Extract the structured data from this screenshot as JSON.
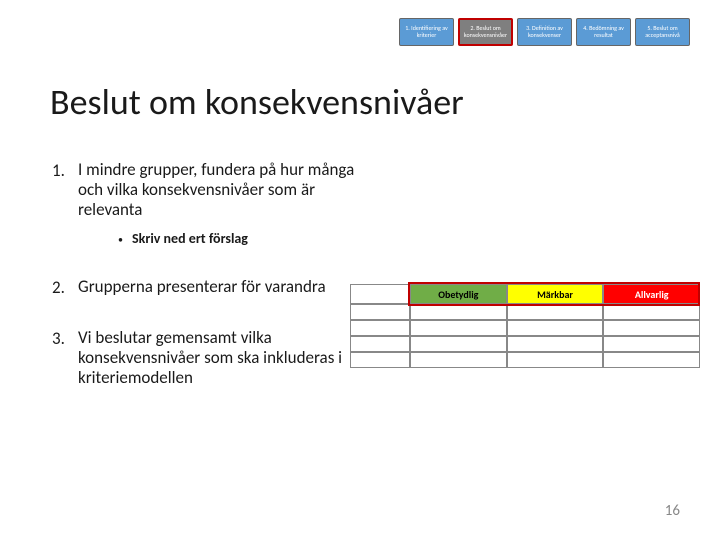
{
  "nav_steps": [
    {
      "label": "1. Identifiering av kriterier",
      "bg": "#5b9bd5"
    },
    {
      "label": "2. Beslut om konsekvensnivåer",
      "bg": "#7f7f7f",
      "highlight": true
    },
    {
      "label": "3. Definition av konsekvenser",
      "bg": "#5b9bd5"
    },
    {
      "label": "4. Bedömning av resultat",
      "bg": "#5b9bd5"
    },
    {
      "label": "5. Beslut om acceptansnivå",
      "bg": "#5b9bd5"
    }
  ],
  "title": "Beslut om konsekvensnivåer",
  "items": [
    {
      "num": "1.",
      "text": "I mindre grupper, fundera på hur många och vilka konsekvensnivåer som är relevanta",
      "sub": "Skriv ned ert förslag"
    },
    {
      "num": "2.",
      "text": "Grupperna presenterar för varandra"
    },
    {
      "num": "3.",
      "text": "Vi beslutar gemensamt vilka konsekvensnivåer som ska inkluderas i kriteriemodellen"
    }
  ],
  "table": {
    "headers": [
      {
        "label": "Obetydlig",
        "bg": "#70ad47",
        "color": "#000000"
      },
      {
        "label": "Märkbar",
        "bg": "#ffff00",
        "color": "#000000"
      },
      {
        "label": "Allvarlig",
        "bg": "#ff0000",
        "color": "#ffffff"
      }
    ],
    "row_count": 4
  },
  "page_number": "16"
}
